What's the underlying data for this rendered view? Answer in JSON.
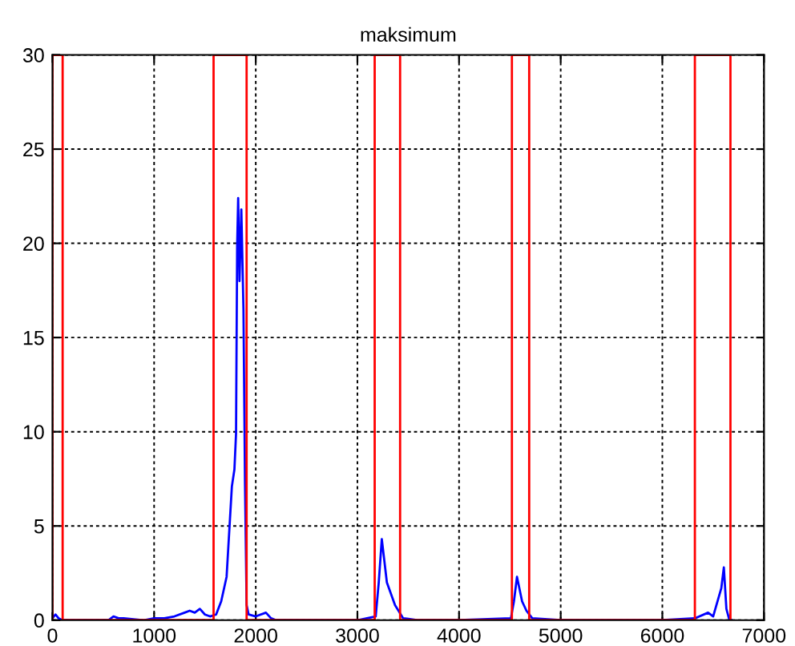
{
  "chart_data": {
    "type": "line",
    "title": "maksimum",
    "xlim": [
      0,
      7000
    ],
    "xticks": [
      0,
      1000,
      2000,
      3000,
      4000,
      5000,
      6000,
      7000
    ],
    "ylim": [
      0,
      30
    ],
    "yticks": [
      0,
      5,
      10,
      15,
      20,
      25,
      30
    ],
    "grid": true,
    "line_style": "solid",
    "marker": "none",
    "series": [
      {
        "color": "#0000ff",
        "x": [
          0,
          30,
          60,
          100,
          300,
          550,
          600,
          650,
          700,
          900,
          1000,
          1100,
          1200,
          1300,
          1350,
          1400,
          1450,
          1500,
          1550,
          1610,
          1660,
          1713,
          1765,
          1790,
          1806,
          1817,
          1827,
          1840,
          1858,
          1879,
          1894,
          1910,
          1930,
          2000,
          2100,
          2150,
          2200,
          2500,
          3000,
          3180,
          3210,
          3240,
          3290,
          3370,
          3450,
          3600,
          4000,
          4510,
          4540,
          4570,
          4620,
          4663,
          4720,
          5000,
          6000,
          6320,
          6450,
          6500,
          6580,
          6605,
          6630,
          6660,
          6680
        ],
        "values": [
          0.1,
          0.3,
          0.1,
          0,
          0,
          0,
          0.2,
          0.1,
          0.1,
          0,
          0.1,
          0.1,
          0.2,
          0.4,
          0.5,
          0.4,
          0.6,
          0.3,
          0.2,
          0.3,
          1.0,
          2.3,
          7.1,
          8.0,
          9.9,
          19.9,
          22.4,
          18.0,
          21.8,
          16.5,
          7.4,
          0.8,
          0.3,
          0.2,
          0.4,
          0.1,
          0,
          0,
          0,
          0.2,
          2.0,
          4.3,
          2.0,
          0.8,
          0.1,
          0,
          0,
          0.1,
          1.0,
          2.3,
          1.0,
          0.5,
          0.1,
          0,
          0,
          0.1,
          0.4,
          0.2,
          1.7,
          2.8,
          0.6,
          0,
          0
        ]
      },
      {
        "color": "#ff0000",
        "x": [
          0,
          0,
          100,
          100,
          1585,
          1585,
          1910,
          1910,
          3170,
          3170,
          3420,
          3420,
          4520,
          4520,
          4690,
          4690,
          6320,
          6320,
          6670,
          6670
        ],
        "values": [
          0,
          30,
          30,
          0,
          0,
          30,
          30,
          0,
          0,
          30,
          30,
          0,
          0,
          30,
          30,
          0,
          0,
          30,
          30,
          0
        ]
      }
    ]
  }
}
